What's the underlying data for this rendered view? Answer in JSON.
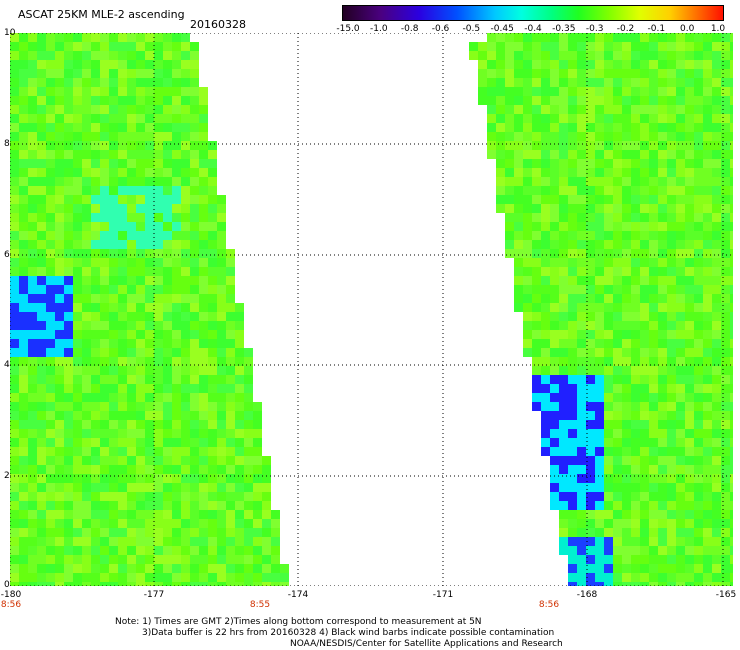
{
  "title": "ASCAT 25KM MLE-2 ascending",
  "date": "20160328",
  "colorbar": {
    "labels": [
      "-15.0",
      "-1.0",
      "-0.8",
      "-0.6",
      "-0.5",
      "-0.45",
      "-0.4",
      "-0.35",
      "-0.3",
      "-0.2",
      "-0.1",
      "0.0",
      "1.0"
    ]
  },
  "axes": {
    "y_labels": [
      "10",
      "8",
      "6",
      "4",
      "2",
      "0"
    ],
    "x_labels": [
      "-180",
      "-177",
      "-174",
      "-171",
      "-168",
      "-165"
    ],
    "y_range": [
      0,
      10
    ],
    "x_range": [
      -180,
      -165
    ],
    "gridlines": "dotted"
  },
  "times": [
    "8:56",
    "8:55",
    "8:56"
  ],
  "notes": {
    "line1": "Note: 1) Times are GMT 2)Times along bottom correspond to measurement at 5N",
    "line2": "3)Data buffer is 22 hrs from 20160328 4) Black wind barbs indicate possible contamination",
    "line3": "NOAA/NESDIS/Center for Satellite Applications and Research"
  }
}
